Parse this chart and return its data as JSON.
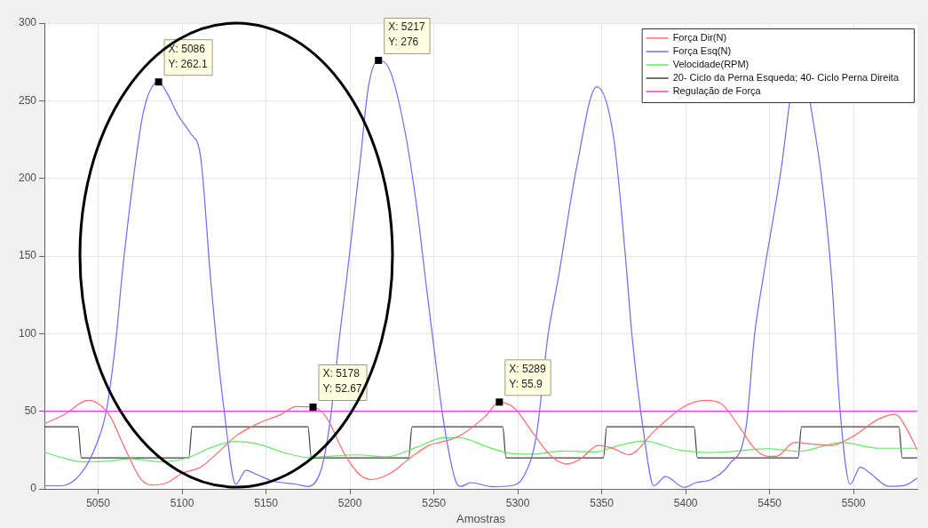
{
  "chart_data": {
    "type": "line",
    "xlabel": "Amostras",
    "xlim": [
      5018,
      5538
    ],
    "ylim": [
      0,
      300
    ],
    "xticks": [
      5050,
      5100,
      5150,
      5200,
      5250,
      5300,
      5350,
      5400,
      5450,
      5500
    ],
    "yticks": [
      0,
      50,
      100,
      150,
      200,
      250,
      300
    ],
    "grid": true,
    "legend": "top right",
    "marker": "none",
    "line_style": "solid",
    "series": [
      {
        "name": "Força Dir(N)",
        "color": "#ff6b6b",
        "x": [
          5018,
          5030,
          5044,
          5050,
          5057,
          5066,
          5075,
          5082,
          5091,
          5100,
          5111,
          5122,
          5132,
          5145,
          5159,
          5168,
          5178,
          5186,
          5197,
          5206,
          5213,
          5224,
          5236,
          5247,
          5254,
          5265,
          5280,
          5289,
          5298,
          5309,
          5320,
          5329,
          5337,
          5348,
          5357,
          5366,
          5382,
          5399,
          5412,
          5421,
          5432,
          5441,
          5449,
          5454,
          5465,
          5474,
          5487,
          5500,
          5515,
          5525,
          5531,
          5538
        ],
        "values": [
          42,
          48,
          57,
          55,
          47,
          26,
          7,
          2.5,
          4,
          10,
          14,
          24,
          34,
          42,
          48,
          53,
          52.67,
          46,
          22,
          9,
          6,
          10,
          20,
          28,
          30,
          34,
          46,
          55.9,
          52,
          36,
          21,
          16,
          19,
          28,
          26,
          22,
          38,
          53,
          57,
          55,
          40,
          26,
          21,
          21,
          30,
          29,
          28,
          34,
          45,
          48,
          40,
          25
        ]
      },
      {
        "name": "Força Esq(N)",
        "color": "#6b6bff",
        "x": [
          5018,
          5028,
          5039,
          5048,
          5055,
          5061,
          5064,
          5071,
          5077,
          5086,
          5091,
          5098,
          5105,
          5111,
          5117,
          5120,
          5125,
          5132,
          5138,
          5145,
          5154,
          5168,
          5175,
          5183,
          5188,
          5194,
          5198,
          5206,
          5211,
          5217,
          5224,
          5233,
          5240,
          5245,
          5249,
          5256,
          5263,
          5266,
          5272,
          5285,
          5296,
          5304,
          5311,
          5318,
          5324,
          5335,
          5347,
          5357,
          5364,
          5368,
          5375,
          5381,
          5388,
          5399,
          5406,
          5415,
          5426,
          5436,
          5441,
          5446,
          5457,
          5462,
          5468,
          5474,
          5481,
          5487,
          5492,
          5498,
          5504,
          5510,
          5521,
          5531,
          5538
        ],
        "values": [
          2,
          2,
          9,
          26,
          51,
          100,
          135,
          200,
          243,
          262.1,
          255,
          240,
          229,
          214,
          135,
          100,
          51,
          3,
          12,
          9,
          5,
          3,
          1.5,
          13,
          42,
          100,
          135,
          210,
          259,
          276,
          269,
          229,
          180,
          135,
          100,
          42,
          5,
          1.6,
          4,
          1.4,
          2,
          9,
          34,
          99,
          135,
          207,
          259,
          227,
          151,
          99,
          36,
          2,
          8,
          1,
          4,
          6,
          16,
          40,
          99,
          135,
          207,
          250,
          null,
          250,
          200,
          135,
          50,
          3,
          14,
          10,
          1.6,
          2.4,
          7
        ]
      },
      {
        "name": "Velocidade(RPM)",
        "color": "#66e866",
        "x": [
          5018,
          5028,
          5041,
          5055,
          5070,
          5088,
          5104,
          5118,
          5132,
          5145,
          5161,
          5175,
          5204,
          5222,
          5240,
          5256,
          5265,
          5282,
          5295,
          5309,
          5327,
          5346,
          5360,
          5375,
          5397,
          5415,
          5449,
          5467,
          5493,
          5515,
          5538
        ],
        "values": [
          23.6,
          20.3,
          17.4,
          17.8,
          19.4,
          17.4,
          20.3,
          27,
          30.6,
          29,
          23.3,
          20.3,
          21.9,
          20.7,
          27,
          33,
          33,
          27,
          23,
          22.4,
          24.4,
          23.8,
          27.8,
          30.8,
          24.8,
          23.4,
          25.8,
          24.2,
          29.8,
          26.2,
          26.2
        ]
      },
      {
        "name": "20- Ciclo da Perna Esqueda; 40- Ciclo Perna Direita",
        "color": "#404040",
        "x": [
          5018,
          5038,
          5040,
          5104,
          5106,
          5175,
          5177,
          5235,
          5237,
          5291,
          5293,
          5351,
          5353,
          5405,
          5407,
          5467,
          5469,
          5527,
          5529,
          5538
        ],
        "values": [
          40,
          40,
          20,
          20,
          40,
          40,
          20,
          20,
          40,
          40,
          20,
          20,
          40,
          40,
          20,
          20,
          40,
          40,
          20,
          20
        ]
      },
      {
        "name": "Regulação de Força",
        "color": "#ff33ff",
        "x": [
          5018,
          5538
        ],
        "values": [
          50,
          50
        ]
      }
    ],
    "annotations": [
      {
        "text": "X: 5086\nY: 262.1",
        "x": 5086,
        "y": 262.1
      },
      {
        "text": "X: 5217\nY: 276",
        "x": 5217,
        "y": 276
      },
      {
        "text": "X: 5178\nY: 52.67",
        "x": 5178,
        "y": 52.67
      },
      {
        "text": "X: 5289\nY: 55.9",
        "x": 5289,
        "y": 55.9
      }
    ]
  }
}
